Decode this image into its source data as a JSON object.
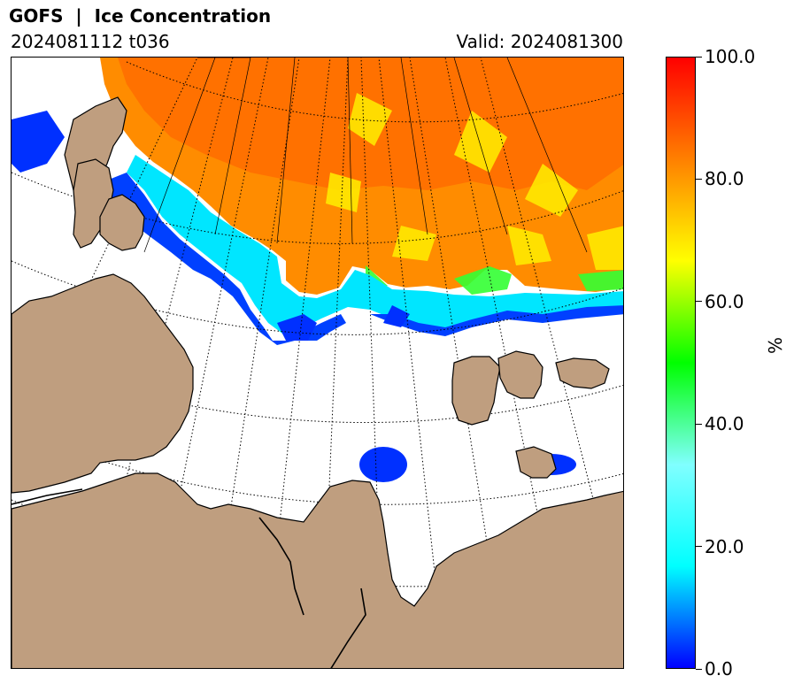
{
  "header": {
    "title": "GOFS  |  Ice Concentration",
    "run": "2024081112 t036",
    "valid": "Valid: 2024081300"
  },
  "colorbar": {
    "unit": "%",
    "min": 0,
    "max": 100,
    "ticks": [
      {
        "value": 0,
        "label": "0.0"
      },
      {
        "value": 20,
        "label": "20.0"
      },
      {
        "value": 40,
        "label": "40.0"
      },
      {
        "value": 60,
        "label": "60.0"
      },
      {
        "value": 80,
        "label": "80.0"
      },
      {
        "value": 100,
        "label": "100.0"
      }
    ],
    "colors": [
      "#0000ff",
      "#00ffff",
      "#80ffff",
      "#00ff00",
      "#ffff00",
      "#ff8000",
      "#ff0000"
    ]
  },
  "map": {
    "land_color": "#bf9e7f",
    "ocean_color": "#ffffff",
    "coastline_color": "#000000",
    "graticule_style": "dotted"
  }
}
